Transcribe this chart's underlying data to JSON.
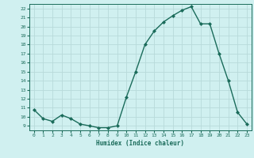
{
  "x": [
    0,
    1,
    2,
    3,
    4,
    5,
    6,
    7,
    8,
    9,
    10,
    11,
    12,
    13,
    14,
    15,
    16,
    17,
    18,
    19,
    20,
    21,
    22,
    23
  ],
  "y": [
    10.8,
    9.8,
    9.5,
    10.2,
    9.8,
    9.2,
    9.0,
    8.8,
    8.8,
    9.0,
    12.2,
    15.0,
    18.0,
    19.5,
    20.5,
    21.2,
    21.8,
    22.2,
    20.3,
    20.3,
    17.0,
    14.0,
    10.5,
    9.2
  ],
  "line_color": "#1a6b5a",
  "marker": "D",
  "marker_size": 2,
  "bg_color": "#d0f0f0",
  "grid_color": "#b8dada",
  "tick_color": "#1a6b5a",
  "label_color": "#1a6b5a",
  "xlabel": "Humidex (Indice chaleur)",
  "ylim": [
    8.5,
    22.5
  ],
  "xlim": [
    -0.5,
    23.5
  ],
  "yticks": [
    9,
    10,
    11,
    12,
    13,
    14,
    15,
    16,
    17,
    18,
    19,
    20,
    21,
    22
  ],
  "xticks": [
    0,
    1,
    2,
    3,
    4,
    5,
    6,
    7,
    8,
    9,
    10,
    11,
    12,
    13,
    14,
    15,
    16,
    17,
    18,
    19,
    20,
    21,
    22,
    23
  ]
}
